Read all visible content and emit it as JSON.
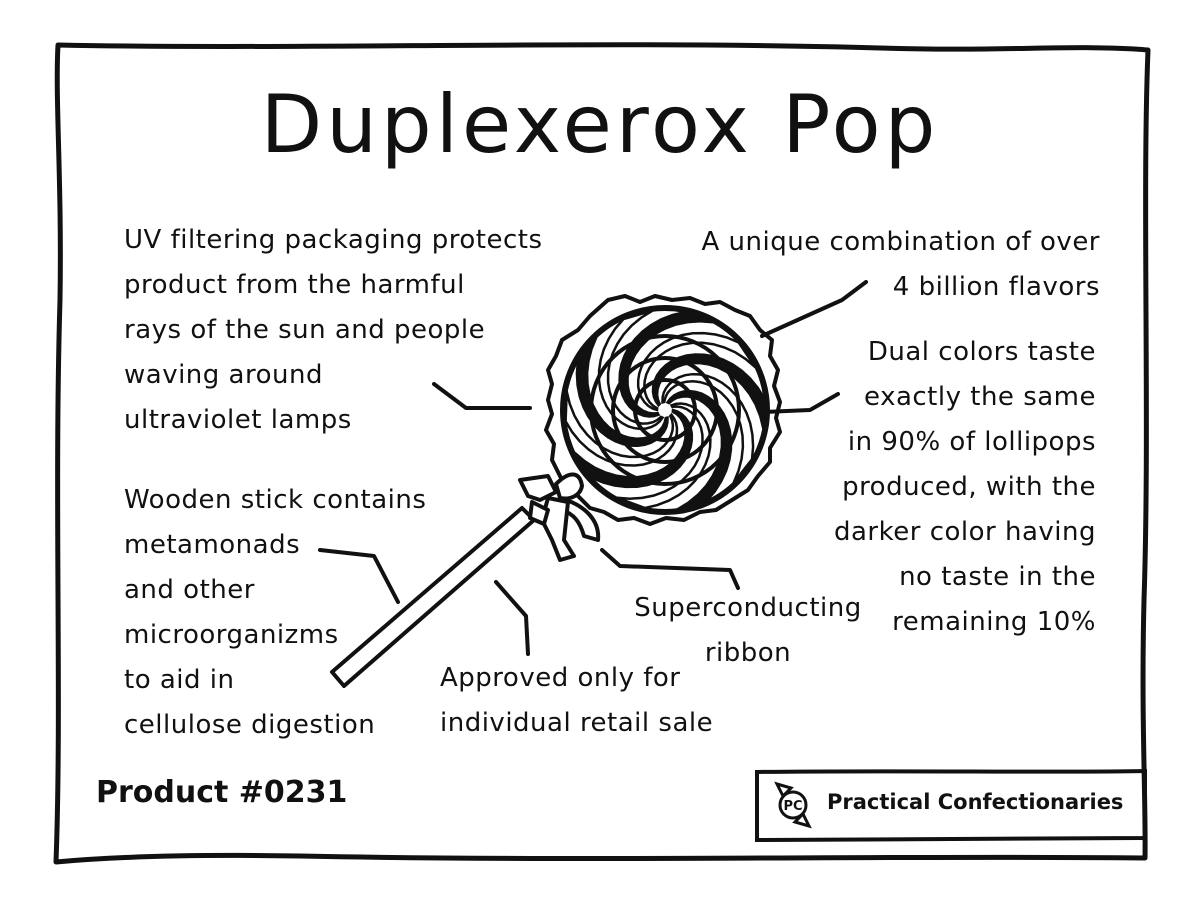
{
  "title": "Duplexerox Pop",
  "callouts": {
    "uv_packaging": "UV filtering packaging protects\nproduct from the harmful\nrays of the sun and people\nwaving around\nultraviolet lamps",
    "flavors": "A unique combination of over\n4 billion flavors",
    "dual_colors": "Dual colors taste\nexactly the same\nin 90% of lollipops\nproduced, with the\ndarker color having\nno taste in the\nremaining 10%",
    "wooden_stick": "Wooden stick contains\nmetamonads\nand other\nmicroorganizms\nto aid in\ncellulose digestion",
    "approved": "Approved only for\nindividual retail sale",
    "ribbon": "Superconducting\nribbon"
  },
  "product_number": "Product #0231",
  "brand": {
    "logo_letters": "PC",
    "name": "Practical Confectionaries"
  },
  "icons": {
    "lollipop": "lollipop-illustration",
    "logo": "candy-wrapper-logo"
  },
  "colors": {
    "ink": "#111111",
    "paper": "#ffffff"
  }
}
